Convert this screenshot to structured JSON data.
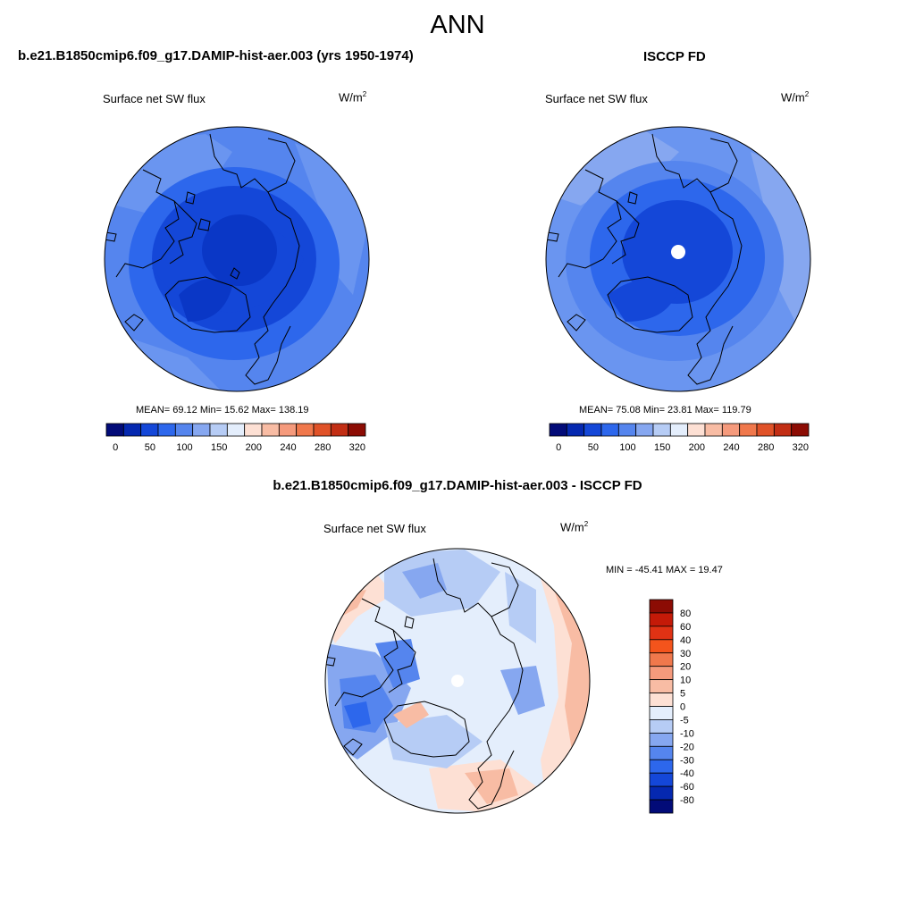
{
  "page": {
    "title": "ANN"
  },
  "panels": [
    {
      "title": "b.e21.B1850cmip6.f09_g17.DAMIP-hist-aer.003 (yrs 1950-1974)",
      "variable": "Surface net SW flux",
      "units_base": "W/m",
      "units_exp": "2",
      "stats": "MEAN=  69.12  Min=  15.62  Max= 138.19"
    },
    {
      "title": "ISCCP FD",
      "variable": "Surface net SW flux",
      "units_base": "W/m",
      "units_exp": "2",
      "stats": "MEAN=  75.08  Min=  23.81  Max= 119.79"
    },
    {
      "title": "b.e21.B1850cmip6.f09_g17.DAMIP-hist-aer.003 - ISCCP FD",
      "variable": "Surface net SW flux",
      "units_base": "W/m",
      "units_exp": "2",
      "stats": "MIN = -45.41 MAX =  19.47"
    }
  ],
  "colorbars": {
    "horizontal": {
      "colors": [
        "#020b78",
        "#0528b0",
        "#1447d8",
        "#2d67ec",
        "#5585ee",
        "#86a7f0",
        "#b6ccf5",
        "#e4eefc",
        "#fde0d4",
        "#f8bca4",
        "#f59a7c",
        "#f0784c",
        "#e05228",
        "#c22e14",
        "#8c0c04"
      ],
      "labels": [
        "0",
        "50",
        "100",
        "150",
        "200",
        "240",
        "280",
        "320"
      ]
    },
    "vertical": {
      "colors": [
        "#020b78",
        "#0528b0",
        "#1447d8",
        "#2d67ec",
        "#5585ee",
        "#86a7f0",
        "#b6ccf5",
        "#e4eefc",
        "#fde0d4",
        "#f8bca4",
        "#f59a7c",
        "#f0784c",
        "#f4541c",
        "#e03214",
        "#c41a08",
        "#8c0c04"
      ],
      "labels": [
        "80",
        "60",
        "40",
        "30",
        "20",
        "10",
        "5",
        "0",
        "-5",
        "-10",
        "-20",
        "-30",
        "-40",
        "-60",
        "-80"
      ]
    }
  }
}
